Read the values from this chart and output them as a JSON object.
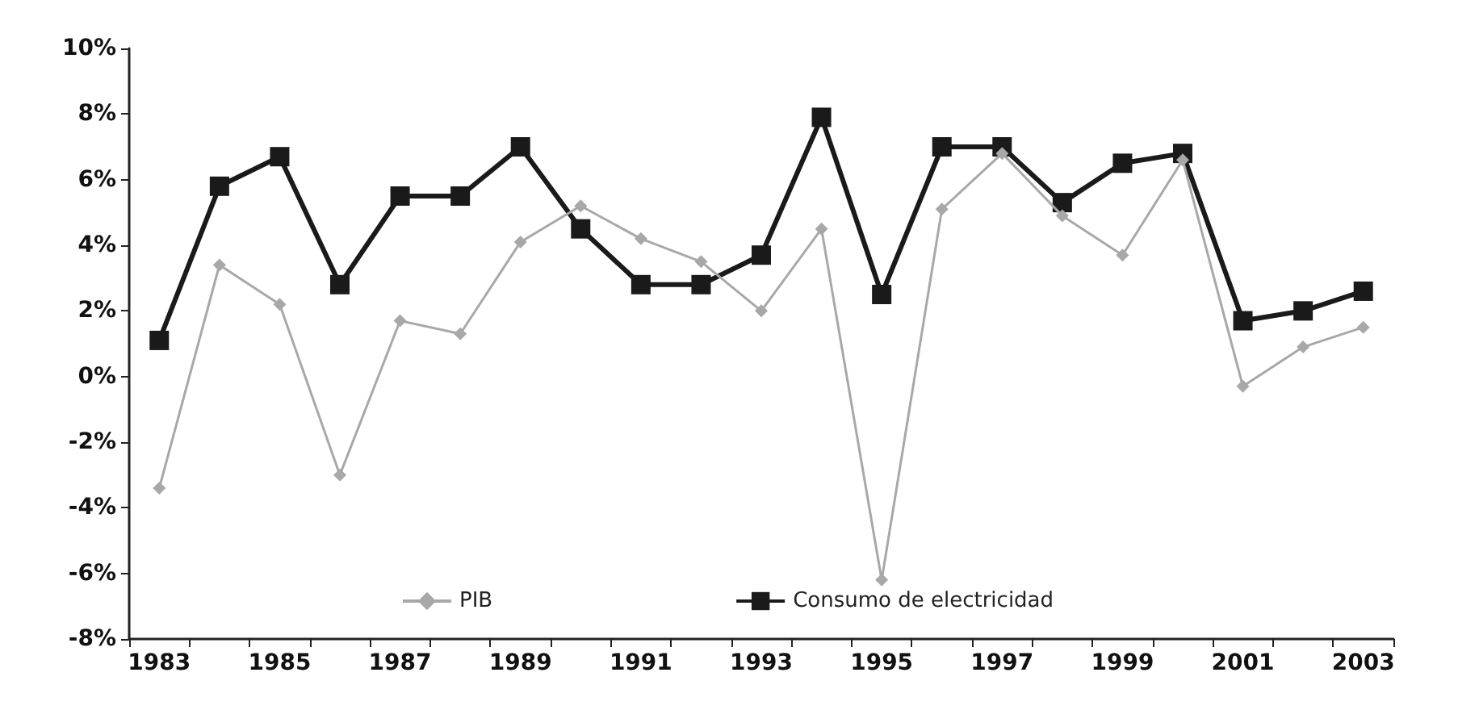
{
  "chart_data": {
    "type": "line",
    "categories": [
      "1983",
      null,
      "1985",
      null,
      "1987",
      null,
      "1989",
      null,
      "1991",
      null,
      "1993",
      null,
      "1995",
      null,
      "1997",
      null,
      "1999",
      null,
      "2001",
      null,
      "2003"
    ],
    "series": [
      {
        "name": "PIB",
        "color": "#a8a8a8",
        "marker": "diamond",
        "values": [
          -3.4,
          3.4,
          2.2,
          -3.0,
          1.7,
          1.3,
          4.1,
          5.2,
          4.2,
          3.5,
          2.0,
          4.5,
          -6.2,
          5.1,
          6.8,
          4.9,
          3.7,
          6.6,
          -0.3,
          0.9,
          1.5
        ]
      },
      {
        "name": "Consumo de electricidad",
        "color": "#1a1a1a",
        "marker": "square",
        "values": [
          1.1,
          5.8,
          6.7,
          2.8,
          5.5,
          5.5,
          7.0,
          4.5,
          2.8,
          2.8,
          3.7,
          7.9,
          2.5,
          7.0,
          7.0,
          5.3,
          6.5,
          6.8,
          1.7,
          2.0,
          2.6
        ]
      }
    ],
    "ylim": [
      -8,
      10
    ],
    "yticks": [
      {
        "value": -8,
        "label": "-8%"
      },
      {
        "value": -6,
        "label": "-6%"
      },
      {
        "value": -4,
        "label": "-4%"
      },
      {
        "value": -2,
        "label": "-2%"
      },
      {
        "value": 0,
        "label": "0%"
      },
      {
        "value": 2,
        "label": "2%"
      },
      {
        "value": 4,
        "label": "4%"
      },
      {
        "value": 6,
        "label": "6%"
      },
      {
        "value": 8,
        "label": "8%"
      },
      {
        "value": 10,
        "label": "10%"
      }
    ],
    "grid": false,
    "legend": "bottom"
  }
}
